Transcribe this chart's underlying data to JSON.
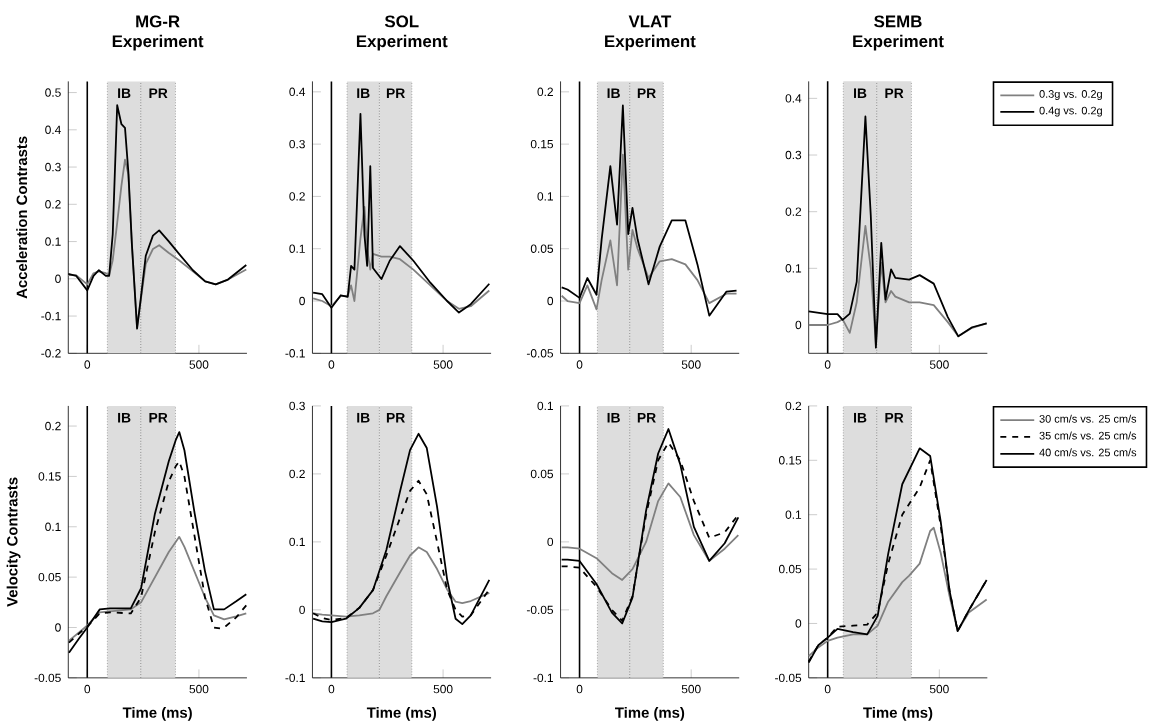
{
  "chart_data": [
    {
      "type": "line",
      "title": "MG-R Experiment",
      "ylabel": "Acceleration Contrasts",
      "xlim": [
        -85,
        715
      ],
      "xticks": [
        0,
        500
      ],
      "ylim": [
        -0.2,
        0.53
      ],
      "yticks": [
        -0.2,
        -0.1,
        0,
        0.1,
        0.2,
        0.3,
        0.4,
        0.5
      ],
      "ref_lines": [
        {
          "axis": "x",
          "value": 0,
          "color": "#000000"
        }
      ],
      "bands": [
        {
          "axis": "x",
          "from": 90,
          "to": 240,
          "label": "IB",
          "color": "#dddddd"
        },
        {
          "axis": "x",
          "from": 240,
          "to": 395,
          "label": "PR",
          "color": "#dddddd"
        }
      ],
      "series": [
        {
          "color": "#808080",
          "x": [
            -85,
            -50,
            0,
            28,
            52,
            83,
            98,
            114,
            134,
            153,
            169,
            184,
            200,
            223,
            239,
            262,
            294,
            322,
            364,
            411,
            473,
            528,
            575,
            630,
            712
          ],
          "values": [
            0.01,
            0.01,
            -0.015,
            0.015,
            0.02,
            0.015,
            0.01,
            0.05,
            0.15,
            0.25,
            0.32,
            0.28,
            0.09,
            -0.13,
            -0.06,
            0.04,
            0.08,
            0.09,
            0.07,
            0.05,
            0.02,
            -0.007,
            -0.015,
            -0.002,
            0.025
          ]
        },
        {
          "color": "#000000",
          "x": [
            -85,
            -50,
            0,
            28,
            52,
            83,
            98,
            114,
            134,
            153,
            169,
            184,
            200,
            223,
            239,
            262,
            294,
            322,
            364,
            411,
            473,
            528,
            575,
            630,
            712
          ],
          "values": [
            0.013,
            0.008,
            -0.031,
            0.008,
            0.023,
            0.008,
            0.008,
            0.12,
            0.466,
            0.415,
            0.405,
            0.287,
            0.091,
            -0.134,
            -0.056,
            0.062,
            0.116,
            0.13,
            0.101,
            0.067,
            0.023,
            -0.007,
            -0.015,
            -0.002,
            0.037
          ]
        }
      ]
    },
    {
      "type": "line",
      "title": "SOL Experiment",
      "xlim": [
        -85,
        715
      ],
      "xticks": [
        0,
        500
      ],
      "ylim": [
        -0.1,
        0.42
      ],
      "yticks": [
        -0.1,
        0,
        0.1,
        0.2,
        0.3,
        0.4
      ],
      "ref_lines": [
        {
          "axis": "x",
          "value": 0,
          "color": "#000000"
        }
      ],
      "bands": [
        {
          "axis": "x",
          "from": 70,
          "to": 215,
          "label": "IB",
          "color": "#dddddd"
        },
        {
          "axis": "x",
          "from": 215,
          "to": 360,
          "label": "PR",
          "color": "#dddddd"
        }
      ],
      "series": [
        {
          "color": "#808080",
          "x": [
            -82,
            -41,
            0,
            42,
            73,
            88,
            103,
            130,
            148,
            160,
            174,
            186,
            224,
            261,
            307,
            367,
            443,
            518,
            571,
            624,
            707
          ],
          "values": [
            0.005,
            0.0,
            -0.01,
            0.01,
            0.01,
            0.03,
            0.0,
            0.12,
            0.18,
            0.1,
            0.06,
            0.09,
            0.085,
            0.085,
            0.08,
            0.06,
            0.03,
            0.0,
            -0.015,
            -0.01,
            0.02
          ]
        },
        {
          "color": "#000000",
          "x": [
            -82,
            -41,
            0,
            42,
            73,
            88,
            103,
            130,
            148,
            160,
            174,
            186,
            224,
            261,
            307,
            367,
            443,
            518,
            571,
            624,
            707
          ],
          "values": [
            0.016,
            0.013,
            -0.013,
            0.011,
            0.008,
            0.067,
            0.06,
            0.358,
            0.126,
            0.067,
            0.258,
            0.063,
            0.042,
            0.077,
            0.105,
            0.077,
            0.035,
            0.0,
            -0.022,
            -0.006,
            0.033
          ]
        }
      ]
    },
    {
      "type": "line",
      "title": "VLAT Experiment",
      "xlim": [
        -85,
        715
      ],
      "xticks": [
        0,
        500
      ],
      "ylim": [
        -0.05,
        0.21
      ],
      "yticks": [
        -0.05,
        0,
        0.05,
        0.1,
        0.15,
        0.2
      ],
      "ref_lines": [
        {
          "axis": "x",
          "value": 0,
          "color": "#000000"
        }
      ],
      "bands": [
        {
          "axis": "x",
          "from": 80,
          "to": 225,
          "label": "IB",
          "color": "#dddddd"
        },
        {
          "axis": "x",
          "from": 225,
          "to": 375,
          "label": "PR",
          "color": "#dddddd"
        }
      ],
      "series": [
        {
          "color": "#808080",
          "x": [
            -80,
            -54,
            0,
            35,
            76,
            99,
            138,
            168,
            194,
            218,
            237,
            260,
            309,
            359,
            413,
            474,
            528,
            581,
            658,
            703
          ],
          "values": [
            0.005,
            0.0,
            -0.002,
            0.015,
            -0.008,
            0.02,
            0.058,
            0.015,
            0.14,
            0.03,
            0.068,
            0.05,
            0.022,
            0.038,
            0.04,
            0.035,
            0.02,
            -0.002,
            0.007,
            0.007
          ]
        },
        {
          "color": "#000000",
          "x": [
            -80,
            -54,
            0,
            35,
            76,
            99,
            138,
            168,
            194,
            218,
            237,
            260,
            309,
            359,
            413,
            474,
            528,
            581,
            658,
            703
          ],
          "values": [
            0.013,
            0.011,
            0.003,
            0.022,
            0.006,
            0.059,
            0.129,
            0.073,
            0.187,
            0.064,
            0.089,
            0.059,
            0.016,
            0.052,
            0.077,
            0.077,
            0.035,
            -0.014,
            0.009,
            0.01
          ]
        }
      ]
    },
    {
      "type": "line",
      "title": "SEMB Experiment",
      "xlim": [
        -85,
        715
      ],
      "xticks": [
        0,
        500
      ],
      "ylim": [
        -0.05,
        0.43
      ],
      "yticks": [
        0,
        0.1,
        0.2,
        0.3,
        0.4
      ],
      "legend": "top right",
      "ref_lines": [
        {
          "axis": "x",
          "value": 0,
          "color": "#000000"
        }
      ],
      "bands": [
        {
          "axis": "x",
          "from": 70,
          "to": 220,
          "label": "IB",
          "color": "#dddddd"
        },
        {
          "axis": "x",
          "from": 220,
          "to": 375,
          "label": "PR",
          "color": "#dddddd"
        }
      ],
      "series": [
        {
          "name": "0.3g vs. 0.2g",
          "color": "#808080",
          "x": [
            -85,
            0,
            44,
            67,
            99,
            130,
            169,
            193,
            216,
            240,
            259,
            284,
            303,
            365,
            412,
            475,
            538,
            585,
            647,
            712
          ],
          "values": [
            0.0,
            0.0,
            0.005,
            0.01,
            -0.014,
            0.04,
            0.175,
            0.1,
            -0.035,
            0.11,
            0.04,
            0.06,
            0.05,
            0.04,
            0.04,
            0.035,
            0.005,
            -0.02,
            -0.005,
            0.003
          ]
        },
        {
          "name": "0.4g vs. 0.2g",
          "color": "#000000",
          "x": [
            -85,
            0,
            44,
            67,
            99,
            130,
            169,
            193,
            216,
            240,
            259,
            284,
            303,
            365,
            412,
            475,
            538,
            585,
            647,
            712
          ],
          "values": [
            0.024,
            0.019,
            0.019,
            0.009,
            0.02,
            0.076,
            0.368,
            0.194,
            -0.04,
            0.145,
            0.045,
            0.098,
            0.083,
            0.08,
            0.088,
            0.073,
            0.014,
            -0.02,
            -0.004,
            0.003
          ]
        }
      ]
    },
    {
      "type": "line",
      "ylabel": "Velocity Contrasts",
      "xlabel": "Time (ms)",
      "xlim": [
        -85,
        715
      ],
      "xticks": [
        0,
        500
      ],
      "ylim": [
        -0.05,
        0.22
      ],
      "yticks": [
        -0.05,
        0,
        0.05,
        0.1,
        0.15,
        0.2
      ],
      "ref_lines": [
        {
          "axis": "x",
          "value": 0,
          "color": "#000000"
        }
      ],
      "bands": [
        {
          "axis": "x",
          "from": 90,
          "to": 240,
          "label": "IB",
          "color": "#dddddd"
        },
        {
          "axis": "x",
          "from": 240,
          "to": 395,
          "label": "PR",
          "color": "#dddddd"
        }
      ],
      "series": [
        {
          "color": "#808080",
          "x": [
            -82,
            -37,
            0,
            56,
            102,
            195,
            241,
            303,
            365,
            396,
            412,
            435,
            481,
            527,
            567,
            613,
            667,
            712
          ],
          "values": [
            -0.013,
            -0.005,
            0.002,
            0.015,
            0.016,
            0.018,
            0.025,
            0.05,
            0.075,
            0.085,
            0.09,
            0.08,
            0.055,
            0.03,
            0.012,
            0.008,
            0.011,
            0.014
          ]
        },
        {
          "color": "#000000",
          "line_style": "dashed",
          "x": [
            -82,
            -37,
            0,
            56,
            102,
            195,
            241,
            303,
            365,
            396,
            412,
            435,
            481,
            527,
            567,
            595,
            613,
            667,
            712
          ],
          "values": [
            -0.015,
            -0.006,
            0.001,
            0.014,
            0.015,
            0.014,
            0.03,
            0.095,
            0.145,
            0.16,
            0.165,
            0.15,
            0.09,
            0.03,
            0.0,
            -0.001,
            0.0,
            0.01,
            0.022
          ]
        },
        {
          "color": "#000000",
          "x": [
            -82,
            -37,
            0,
            56,
            102,
            195,
            241,
            303,
            365,
            396,
            412,
            435,
            481,
            527,
            567,
            613,
            667,
            712
          ],
          "values": [
            -0.025,
            -0.011,
            0.0,
            0.018,
            0.019,
            0.019,
            0.039,
            0.113,
            0.165,
            0.186,
            0.194,
            0.176,
            0.113,
            0.056,
            0.018,
            0.018,
            0.026,
            0.033
          ]
        }
      ]
    },
    {
      "type": "line",
      "xlabel": "Time (ms)",
      "xlim": [
        -85,
        715
      ],
      "xticks": [
        0,
        500
      ],
      "ylim": [
        -0.1,
        0.3
      ],
      "yticks": [
        -0.1,
        0,
        0.1,
        0.2,
        0.3
      ],
      "ref_lines": [
        {
          "axis": "x",
          "value": 0,
          "color": "#000000"
        }
      ],
      "bands": [
        {
          "axis": "x",
          "from": 70,
          "to": 215,
          "label": "IB",
          "color": "#dddddd"
        },
        {
          "axis": "x",
          "from": 215,
          "to": 360,
          "label": "PR",
          "color": "#dddddd"
        }
      ],
      "series": [
        {
          "color": "#808080",
          "x": [
            -82,
            -41,
            0,
            65,
            125,
            186,
            215,
            246,
            307,
            352,
            390,
            427,
            473,
            518,
            556,
            586,
            624,
            707
          ],
          "values": [
            -0.005,
            -0.007,
            -0.008,
            -0.01,
            -0.008,
            -0.005,
            0.0,
            0.02,
            0.055,
            0.08,
            0.092,
            0.085,
            0.06,
            0.03,
            0.012,
            0.01,
            0.013,
            0.025
          ]
        },
        {
          "color": "#000000",
          "line_style": "dashed",
          "x": [
            -82,
            -41,
            0,
            65,
            125,
            186,
            246,
            307,
            352,
            390,
            427,
            473,
            518,
            556,
            586,
            624,
            707
          ],
          "values": [
            -0.005,
            -0.012,
            -0.015,
            -0.012,
            0.003,
            0.029,
            0.08,
            0.135,
            0.175,
            0.19,
            0.17,
            0.1,
            0.03,
            0.0,
            -0.01,
            -0.008,
            0.03
          ]
        },
        {
          "color": "#000000",
          "x": [
            -82,
            -41,
            0,
            65,
            125,
            186,
            246,
            307,
            352,
            390,
            427,
            473,
            518,
            556,
            586,
            624,
            707
          ],
          "values": [
            -0.013,
            -0.017,
            -0.018,
            -0.013,
            0.003,
            0.029,
            0.088,
            0.174,
            0.235,
            0.259,
            0.238,
            0.152,
            0.045,
            -0.013,
            -0.021,
            -0.008,
            0.044
          ]
        }
      ]
    },
    {
      "type": "line",
      "xlabel": "Time (ms)",
      "xlim": [
        -85,
        715
      ],
      "xticks": [
        0,
        500
      ],
      "ylim": [
        -0.1,
        0.1
      ],
      "yticks": [
        -0.1,
        -0.05,
        0,
        0.05,
        0.1
      ],
      "ref_lines": [
        {
          "axis": "x",
          "value": 0,
          "color": "#000000"
        }
      ],
      "bands": [
        {
          "axis": "x",
          "from": 80,
          "to": 225,
          "label": "IB",
          "color": "#dddddd"
        },
        {
          "axis": "x",
          "from": 225,
          "to": 375,
          "label": "PR",
          "color": "#dddddd"
        }
      ],
      "series": [
        {
          "color": "#808080",
          "x": [
            -80,
            -54,
            0,
            76,
            145,
            191,
            237,
            298,
            352,
            398,
            451,
            512,
            581,
            650,
            711
          ],
          "values": [
            -0.004,
            -0.004,
            -0.005,
            -0.012,
            -0.023,
            -0.028,
            -0.02,
            0.0,
            0.03,
            0.043,
            0.033,
            0.005,
            -0.014,
            -0.005,
            0.005
          ]
        },
        {
          "color": "#000000",
          "line_style": "dashed",
          "x": [
            -80,
            -54,
            0,
            76,
            145,
            191,
            237,
            298,
            352,
            398,
            451,
            512,
            581,
            650,
            711
          ],
          "values": [
            -0.018,
            -0.018,
            -0.019,
            -0.033,
            -0.05,
            -0.058,
            -0.04,
            0.02,
            0.06,
            0.073,
            0.06,
            0.03,
            0.003,
            0.007,
            0.02
          ]
        },
        {
          "color": "#000000",
          "x": [
            -80,
            -54,
            0,
            76,
            145,
            191,
            237,
            298,
            352,
            398,
            451,
            512,
            581,
            650,
            711
          ],
          "values": [
            -0.013,
            -0.013,
            -0.014,
            -0.031,
            -0.052,
            -0.06,
            -0.041,
            0.023,
            0.065,
            0.083,
            0.057,
            0.011,
            -0.014,
            -0.001,
            0.018
          ]
        }
      ]
    },
    {
      "type": "line",
      "xlabel": "Time (ms)",
      "xlim": [
        -85,
        715
      ],
      "xticks": [
        0,
        500
      ],
      "ylim": [
        -0.05,
        0.2
      ],
      "yticks": [
        -0.05,
        0,
        0.05,
        0.1,
        0.15,
        0.2
      ],
      "legend": "top right",
      "ref_lines": [
        {
          "axis": "x",
          "value": 0,
          "color": "#000000"
        }
      ],
      "bands": [
        {
          "axis": "x",
          "from": 70,
          "to": 220,
          "label": "IB",
          "color": "#dddddd"
        },
        {
          "axis": "x",
          "from": 220,
          "to": 375,
          "label": "PR",
          "color": "#dddddd"
        }
      ],
      "series": [
        {
          "name": "30 cm/s vs. 25 cm/s",
          "color": "#808080",
          "x": [
            -85,
            -42,
            0,
            44,
            114,
            177,
            224,
            271,
            334,
            365,
            412,
            459,
            475,
            506,
            546,
            582,
            632,
            712
          ],
          "values": [
            -0.03,
            -0.022,
            -0.016,
            -0.013,
            -0.01,
            -0.01,
            -0.002,
            0.02,
            0.038,
            0.044,
            0.055,
            0.085,
            0.088,
            0.065,
            0.025,
            -0.007,
            0.01,
            0.022
          ]
        },
        {
          "name": "35 cm/s vs. 25 cm/s",
          "color": "#000000",
          "line_style": "dashed",
          "x": [
            -85,
            -42,
            0,
            44,
            114,
            177,
            224,
            271,
            334,
            412,
            459,
            506,
            546,
            582,
            632,
            712
          ],
          "values": [
            -0.035,
            -0.02,
            -0.013,
            -0.003,
            -0.002,
            -0.001,
            0.01,
            0.055,
            0.1,
            0.125,
            0.15,
            0.09,
            0.03,
            -0.007,
            0.012,
            0.04
          ]
        },
        {
          "name": "40 cm/s vs. 25 cm/s",
          "color": "#000000",
          "x": [
            -85,
            -42,
            0,
            44,
            114,
            177,
            224,
            271,
            334,
            412,
            459,
            506,
            546,
            582,
            632,
            712
          ],
          "values": [
            -0.036,
            -0.02,
            -0.013,
            -0.005,
            -0.008,
            -0.01,
            0.007,
            0.064,
            0.128,
            0.161,
            0.154,
            0.094,
            0.03,
            -0.007,
            0.012,
            0.04
          ]
        }
      ]
    }
  ]
}
